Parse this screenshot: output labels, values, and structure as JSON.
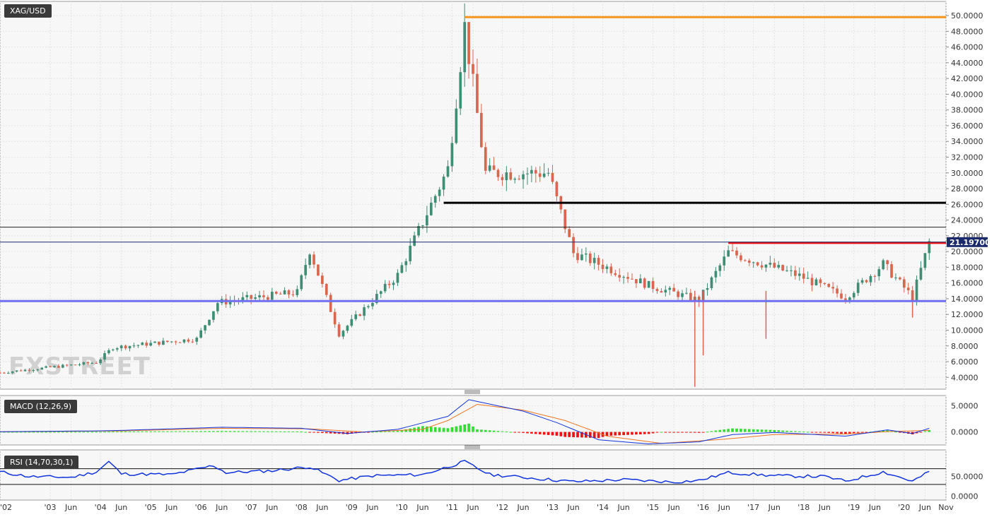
{
  "symbol": "XAG/USD",
  "watermark": "FXSTREET",
  "current_price_label": "21.19700",
  "colors": {
    "up": "#3e8d74",
    "down": "#d9664f",
    "orange_line": "#f5961e",
    "red_line": "#ee1111",
    "black_line": "#000000",
    "purple_line": "#6f6ff0",
    "macd_line": "#1133dd",
    "signal_line": "#ee7722",
    "hist_up": "#33dd33",
    "hist_down": "#ee1111",
    "rsi_line": "#1133dd",
    "price_tag": "#1a2a6c"
  },
  "chart_data": [
    {
      "type": "candlestick",
      "title": "XAG/USD",
      "ylim": [
        2.5,
        51.8
      ],
      "y_ticks": [
        "4.0000",
        "6.0000",
        "8.0000",
        "10.0000",
        "12.0000",
        "14.0000",
        "16.0000",
        "18.0000",
        "20.0000",
        "22.0000",
        "24.0000",
        "26.0000",
        "28.0000",
        "30.0000",
        "32.0000",
        "34.0000",
        "36.0000",
        "38.0000",
        "40.0000",
        "42.0000",
        "44.0000",
        "46.0000",
        "48.0000",
        "50.0000"
      ],
      "x_ticks": [
        "'02",
        "'03",
        "Jun",
        "'04",
        "Jun",
        "'05",
        "Jun",
        "'06",
        "Jun",
        "'07",
        "Jun",
        "'08",
        "Jun",
        "'09",
        "Jun",
        "'10",
        "Jun",
        "'11",
        "Jun",
        "'12",
        "Jun",
        "'13",
        "Jun",
        "'14",
        "Jun",
        "'15",
        "Jun",
        "'16",
        "Jun",
        "'17",
        "Jun",
        "'18",
        "Jun",
        "'19",
        "Jun",
        "'20",
        "Jun",
        "Nov"
      ],
      "x_range": [
        "2002-01",
        "2020-11"
      ],
      "key_points": [
        {
          "date": "2002-01",
          "close": 4.6
        },
        {
          "date": "2003-12",
          "close": 5.9
        },
        {
          "date": "2004-04",
          "close": 7.8
        },
        {
          "date": "2005-12",
          "close": 8.9
        },
        {
          "date": "2006-05",
          "close": 13.5
        },
        {
          "date": "2007-12",
          "close": 14.8
        },
        {
          "date": "2008-03",
          "close": 20.2
        },
        {
          "date": "2008-10",
          "close": 9.5
        },
        {
          "date": "2009-12",
          "close": 17.0
        },
        {
          "date": "2010-12",
          "close": 30.5
        },
        {
          "date": "2011-04",
          "close": 48.6
        },
        {
          "date": "2011-09",
          "close": 30.0
        },
        {
          "date": "2012-12",
          "close": 30.0
        },
        {
          "date": "2013-06",
          "close": 19.8
        },
        {
          "date": "2014-12",
          "close": 15.7
        },
        {
          "date": "2015-12",
          "close": 13.8
        },
        {
          "date": "2016-07",
          "close": 19.9
        },
        {
          "date": "2017-12",
          "close": 16.9
        },
        {
          "date": "2018-11",
          "close": 14.2
        },
        {
          "date": "2019-08",
          "close": 18.4
        },
        {
          "date": "2020-03",
          "close": 14.2
        },
        {
          "date": "2020-07",
          "close": 21.2
        }
      ],
      "spikes": [
        {
          "date": "2015-11",
          "low": 2.8
        },
        {
          "date": "2016-01",
          "low": 6.8
        },
        {
          "date": "2017-04",
          "low": 8.9
        },
        {
          "date": "2020-03",
          "low": 11.6
        }
      ],
      "levels": [
        {
          "name": "orange",
          "value": 49.8,
          "from": "2011-04"
        },
        {
          "name": "black",
          "value": 26.2,
          "from": "2010-11"
        },
        {
          "name": "red",
          "value": 21.1,
          "from": "2016-07"
        },
        {
          "name": "purple",
          "value": 13.7,
          "from": "2002-01"
        },
        {
          "name": "thin-black",
          "value": 23.1,
          "from": "2002-01"
        },
        {
          "name": "price",
          "value": 21.197,
          "from": "2002-01"
        }
      ],
      "current_price": 21.197
    },
    {
      "type": "line",
      "title": "MACD (12,26,9)",
      "ylim": [
        -2.5,
        7.0
      ],
      "y_ticks": [
        "5.0000",
        "0.0000"
      ],
      "macd_points": [
        {
          "date": "2002-01",
          "v": 0.05
        },
        {
          "date": "2003-12",
          "v": 0.2
        },
        {
          "date": "2004-06",
          "v": 0.3
        },
        {
          "date": "2006-06",
          "v": 0.9
        },
        {
          "date": "2008-01",
          "v": 0.7
        },
        {
          "date": "2008-12",
          "v": -0.3
        },
        {
          "date": "2009-12",
          "v": 0.5
        },
        {
          "date": "2010-12",
          "v": 3.0
        },
        {
          "date": "2011-05",
          "v": 6.2
        },
        {
          "date": "2012-06",
          "v": 4.0
        },
        {
          "date": "2013-02",
          "v": 1.8
        },
        {
          "date": "2013-12",
          "v": -1.5
        },
        {
          "date": "2014-12",
          "v": -2.3
        },
        {
          "date": "2015-12",
          "v": -1.9
        },
        {
          "date": "2016-08",
          "v": -0.5
        },
        {
          "date": "2017-06",
          "v": -0.1
        },
        {
          "date": "2018-11",
          "v": -0.8
        },
        {
          "date": "2019-09",
          "v": 0.4
        },
        {
          "date": "2020-03",
          "v": -0.3
        },
        {
          "date": "2020-07",
          "v": 0.7
        }
      ],
      "signal_points": [
        {
          "date": "2002-01",
          "v": 0.03
        },
        {
          "date": "2004-06",
          "v": 0.2
        },
        {
          "date": "2006-06",
          "v": 0.7
        },
        {
          "date": "2008-03",
          "v": 0.6
        },
        {
          "date": "2009-04",
          "v": 0.0
        },
        {
          "date": "2010-06",
          "v": 0.5
        },
        {
          "date": "2010-12",
          "v": 2.2
        },
        {
          "date": "2011-07",
          "v": 5.3
        },
        {
          "date": "2012-06",
          "v": 4.2
        },
        {
          "date": "2013-04",
          "v": 2.2
        },
        {
          "date": "2014-02",
          "v": -0.8
        },
        {
          "date": "2015-03",
          "v": -2.2
        },
        {
          "date": "2016-06",
          "v": -1.4
        },
        {
          "date": "2017-06",
          "v": -0.5
        },
        {
          "date": "2018-11",
          "v": -0.4
        },
        {
          "date": "2019-10",
          "v": 0.1
        },
        {
          "date": "2020-07",
          "v": 0.3
        }
      ]
    },
    {
      "type": "line",
      "title": "RSI (14,70,30,1)",
      "ylim": [
        -10,
        118
      ],
      "y_ticks": [
        "50.0000",
        "0.0000"
      ],
      "bands": [
        70,
        30
      ],
      "rsi_points": [
        {
          "date": "2002-01",
          "v": 62
        },
        {
          "date": "2002-08",
          "v": 50
        },
        {
          "date": "2003-06",
          "v": 48
        },
        {
          "date": "2003-12",
          "v": 62
        },
        {
          "date": "2004-03",
          "v": 88
        },
        {
          "date": "2004-06",
          "v": 57
        },
        {
          "date": "2005-06",
          "v": 55
        },
        {
          "date": "2006-04",
          "v": 78
        },
        {
          "date": "2006-07",
          "v": 60
        },
        {
          "date": "2007-06",
          "v": 65
        },
        {
          "date": "2008-03",
          "v": 75
        },
        {
          "date": "2008-10",
          "v": 40
        },
        {
          "date": "2009-06",
          "v": 52
        },
        {
          "date": "2010-06",
          "v": 55
        },
        {
          "date": "2011-04",
          "v": 88
        },
        {
          "date": "2011-10",
          "v": 55
        },
        {
          "date": "2012-06",
          "v": 48
        },
        {
          "date": "2013-06",
          "v": 37
        },
        {
          "date": "2014-06",
          "v": 42
        },
        {
          "date": "2015-06",
          "v": 36
        },
        {
          "date": "2015-12",
          "v": 40
        },
        {
          "date": "2016-07",
          "v": 60
        },
        {
          "date": "2017-06",
          "v": 52
        },
        {
          "date": "2018-06",
          "v": 50
        },
        {
          "date": "2018-11",
          "v": 38
        },
        {
          "date": "2019-08",
          "v": 62
        },
        {
          "date": "2020-03",
          "v": 38
        },
        {
          "date": "2020-07",
          "v": 62
        }
      ]
    }
  ]
}
